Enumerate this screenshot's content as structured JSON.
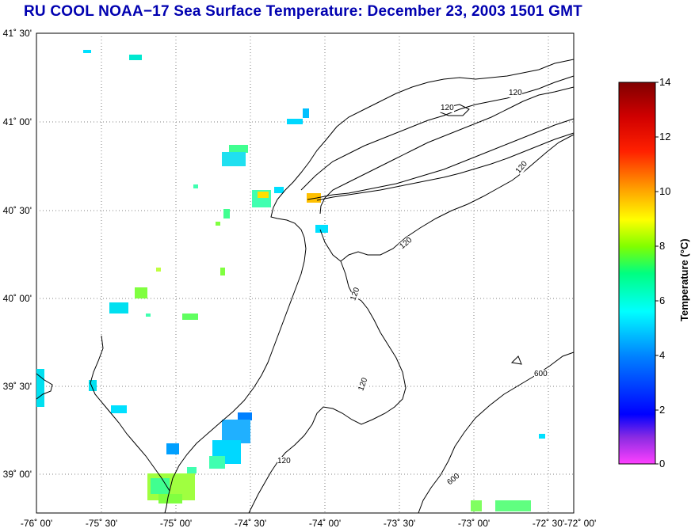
{
  "title": "RU COOL  NOAA−17  Sea Surface Temperature:  December 23, 2003 1501 GMT",
  "map": {
    "lat_labels": [
      "41˚ 30'",
      "41˚ 00'",
      "40˚ 30'",
      "40˚ 00'",
      "39˚ 30'",
      "39˚ 00'"
    ],
    "lon_labels": [
      "-76˚ 00'",
      "-75˚ 30'",
      "-75˚ 00'",
      "-74˚ 30'",
      "-74˚ 00'",
      "-73˚ 30'",
      "-73˚ 00'",
      "-72˚ 30'",
      "-72˚ 00'"
    ],
    "contour_labels": [
      "120",
      "120",
      "120",
      "120",
      "120",
      "120",
      "120",
      "600",
      "600"
    ],
    "colors": {
      "coast": "#000000",
      "grid": "#808080"
    }
  },
  "colorbar": {
    "label": "Temperature (°C)",
    "ticks": [
      "14",
      "12",
      "10",
      "8",
      "6",
      "4",
      "2",
      "0"
    ],
    "range": [
      0,
      14
    ]
  }
}
